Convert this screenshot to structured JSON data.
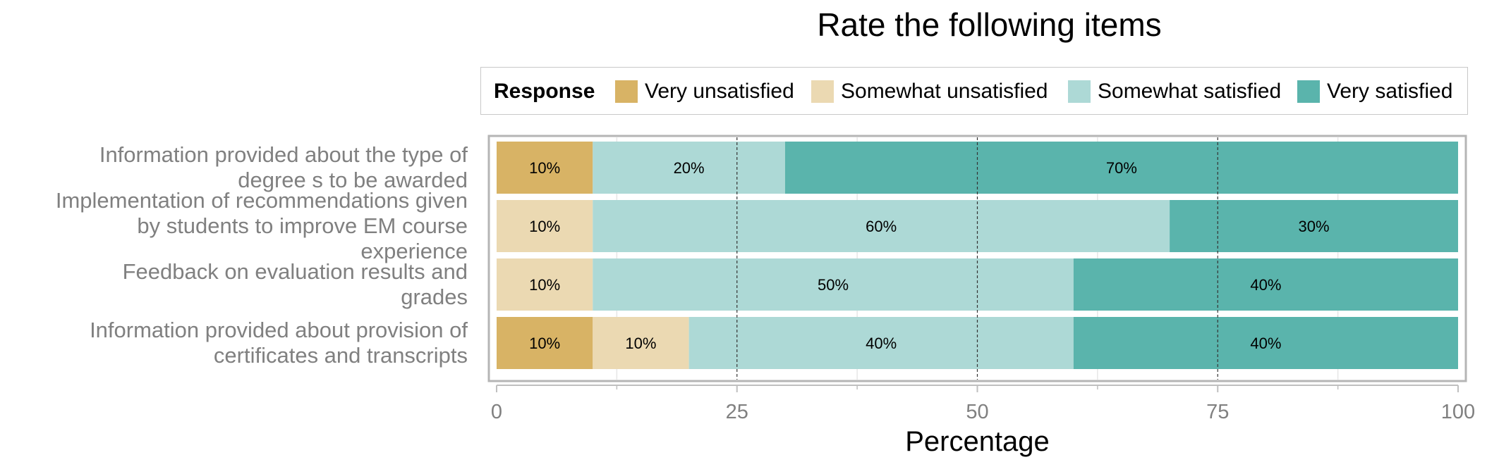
{
  "chart_data": {
    "type": "bar",
    "orientation": "horizontal",
    "stacked": true,
    "title": "Rate the following items",
    "xlabel": "Percentage",
    "xlim": [
      0,
      100
    ],
    "xticks": [
      0,
      25,
      50,
      75,
      100
    ],
    "legend": {
      "title": "Response",
      "placement": "top",
      "entries": [
        "Very unsatisfied",
        "Somewhat unsatisfied",
        "Somewhat satisfied",
        "Very satisfied"
      ]
    },
    "categories": [
      "Information provided about the type of degree s to be awarded",
      "Implementation of recommendations given by students to improve EM course experience",
      "Feedback on evaluation results and grades",
      "Information provided about provision of certificates and transcripts"
    ],
    "category_lines": [
      [
        "Information provided about the type of",
        "degree s to be awarded"
      ],
      [
        "Implementation of recommendations given",
        "by students to improve EM course",
        "experience"
      ],
      [
        "Feedback on evaluation results and",
        "grades"
      ],
      [
        "Information provided about provision of",
        "certificates and transcripts"
      ]
    ],
    "series": [
      {
        "name": "Very unsatisfied",
        "color": "#d8b365",
        "values": [
          10,
          0,
          0,
          10
        ]
      },
      {
        "name": "Somewhat unsatisfied",
        "color": "#ebd9b2",
        "values": [
          0,
          10,
          10,
          10
        ]
      },
      {
        "name": "Somewhat satisfied",
        "color": "#add9d6",
        "values": [
          20,
          60,
          50,
          40
        ]
      },
      {
        "name": "Very satisfied",
        "color": "#5ab4ac",
        "values": [
          70,
          30,
          40,
          40
        ]
      }
    ],
    "data_labels": [
      [
        "10%",
        "",
        "20%",
        "70%"
      ],
      [
        "",
        "10%",
        "60%",
        "30%"
      ],
      [
        "",
        "10%",
        "50%",
        "40%"
      ],
      [
        "10%",
        "10%",
        "40%",
        "40%"
      ]
    ],
    "grid": {
      "vertical_major": "dashed",
      "vertical_minor": "solid-white"
    }
  }
}
